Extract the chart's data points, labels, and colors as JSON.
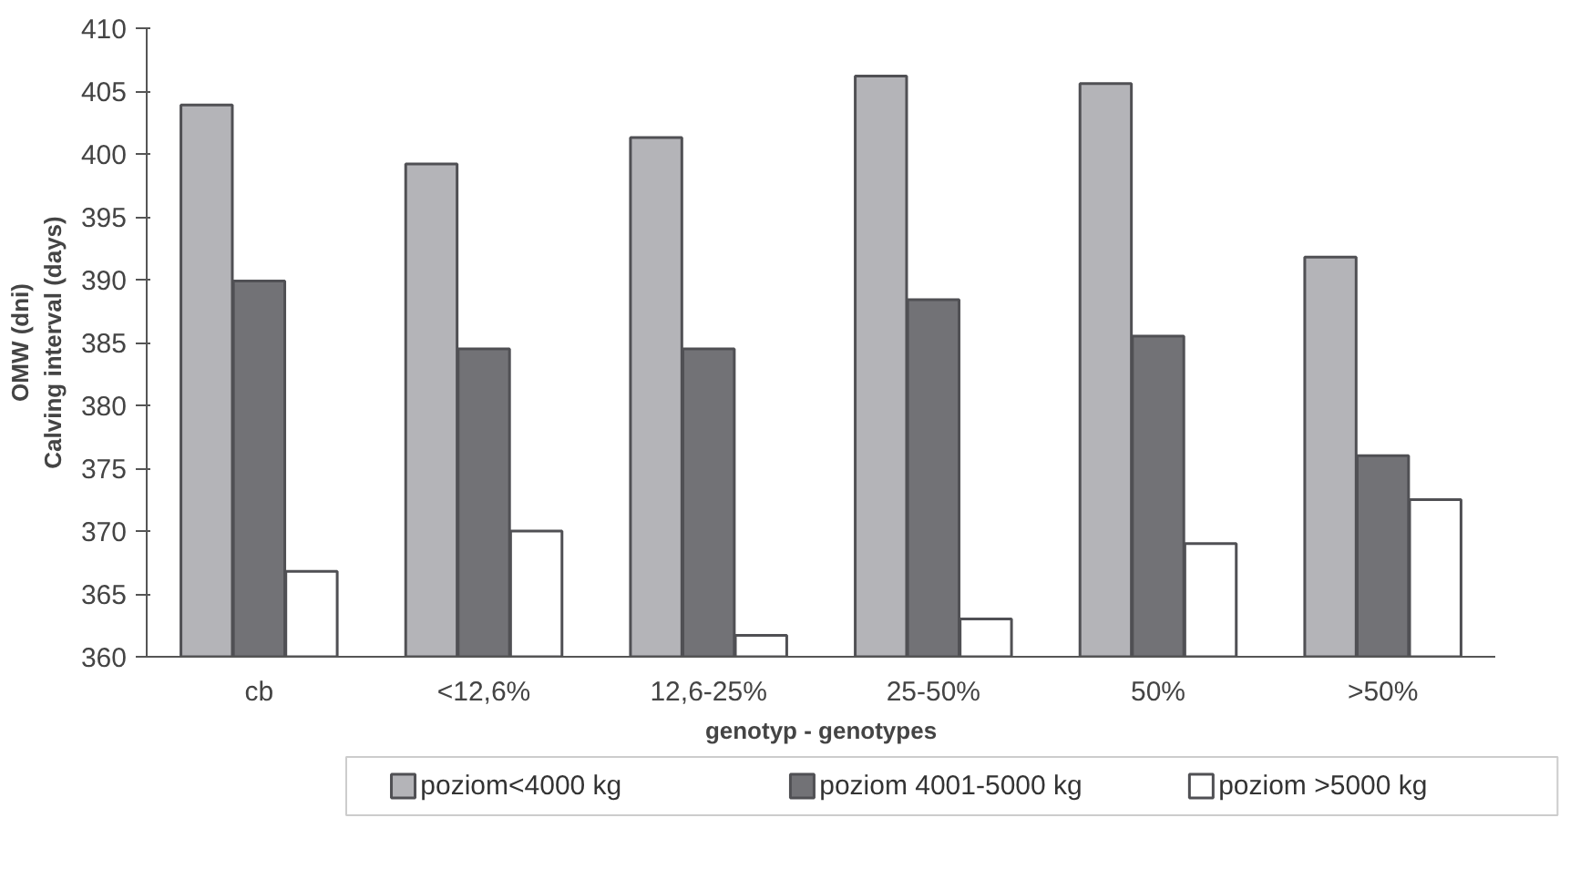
{
  "chart_data": {
    "type": "bar",
    "ylabel": "OMW (dni)\nCalving interval (days)",
    "xlabel": "genotyp - genotypes",
    "categories": [
      "cb",
      "<12,6%",
      "12,6-25%",
      "25-50%",
      "50%",
      ">50%"
    ],
    "series": [
      {
        "name": "poziom<4000 kg",
        "color": "#b4b4b8",
        "values": [
          403.9,
          399.2,
          401.3,
          406.2,
          405.6,
          391.8
        ]
      },
      {
        "name": "poziom 4001-5000 kg",
        "color": "#727276",
        "values": [
          389.9,
          384.5,
          384.5,
          388.4,
          385.5,
          376
        ]
      },
      {
        "name": "poziom >5000 kg",
        "color": "#ffffff",
        "values": [
          366.8,
          370,
          361.7,
          363,
          369,
          372.5
        ]
      }
    ],
    "ylim": [
      360,
      410
    ],
    "yticks": [
      360,
      365,
      370,
      375,
      380,
      385,
      390,
      395,
      400,
      405,
      410
    ],
    "grid": false,
    "legend": "bottom"
  }
}
